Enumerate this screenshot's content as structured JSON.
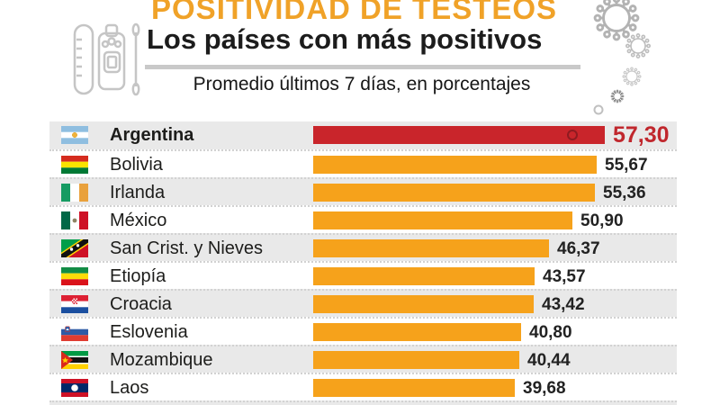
{
  "header": {
    "title": "POSITIVIDAD DE TESTEOS",
    "subtitle": "Los países con más positivos",
    "note": "Promedio últimos 7 días, en porcentajes"
  },
  "icons": {
    "header_icon": "covid-test-kit-icon",
    "decoration": "coronavirus-particles-icons",
    "bar_marker": "virus-marker-icon"
  },
  "colors": {
    "title_orange": "#F0A228",
    "bar_orange": "#F6A21B",
    "highlight_red": "#C9252B",
    "highlight_value_red": "#C0272D",
    "row_alt_gray": "#E9E9E9"
  },
  "chart_data": {
    "type": "bar",
    "orientation": "horizontal",
    "title": "POSITIVIDAD DE TESTEOS",
    "subtitle": "Los países con más positivos",
    "note": "Promedio últimos 7 días, en porcentajes",
    "unit": "percent",
    "decimal_style": "comma",
    "categories": [
      "Argentina",
      "Bolivia",
      "Irlanda",
      "México",
      "San Crist. y Nieves",
      "Etiopía",
      "Croacia",
      "Eslovenia",
      "Mozambique",
      "Laos"
    ],
    "values": [
      57.3,
      55.67,
      55.36,
      50.9,
      46.37,
      43.57,
      43.42,
      40.8,
      40.44,
      39.68
    ],
    "value_labels": [
      "57,30",
      "55,67",
      "55,36",
      "50,90",
      "46,37",
      "43,57",
      "43,42",
      "40,80",
      "40,44",
      "39,68"
    ],
    "flags": [
      "argentina",
      "bolivia",
      "irlanda",
      "mexico",
      "san-cristobal-y-nieves",
      "etiopia",
      "croacia",
      "eslovenia",
      "mozambique",
      "laos"
    ],
    "highlight_index": 0,
    "xlim": [
      0,
      71.5
    ],
    "legend": false,
    "grid": false,
    "zebra_striping": true
  }
}
